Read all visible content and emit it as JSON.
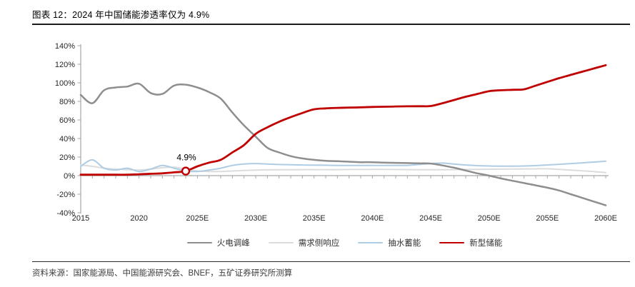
{
  "header": {
    "title": "图表 12：2024 年中国储能渗透率仅为 4.9%"
  },
  "source": {
    "text": "资料来源：国家能源局、中国能源研究会、BNEF，五矿证券研究所测算"
  },
  "chart_data": {
    "type": "line",
    "title": "2024 年中国储能渗透率仅为 4.9%",
    "figure_label": "图表 12",
    "xlabel": "",
    "ylabel": "",
    "xlim": [
      2015,
      2060
    ],
    "ylim": [
      -40,
      140
    ],
    "grid": false,
    "legend_position": "bottom",
    "axis_color": "#a6a6a6",
    "tick_label_color": "#262626",
    "y_tick_values": [
      140,
      120,
      100,
      80,
      60,
      40,
      20,
      0,
      -20,
      -40
    ],
    "y_tick_labels": [
      "140%",
      "120%",
      "100%",
      "80%",
      "60%",
      "40%",
      "20%",
      "0%",
      "-20%",
      "-40%"
    ],
    "x_ticks": [
      {
        "year": 2015,
        "label": "2015"
      },
      {
        "year": 2020,
        "label": "2020"
      },
      {
        "year": 2025,
        "label": "2025E"
      },
      {
        "year": 2030,
        "label": "2030E"
      },
      {
        "year": 2035,
        "label": "2035E"
      },
      {
        "year": 2040,
        "label": "2040E"
      },
      {
        "year": 2045,
        "label": "2045E"
      },
      {
        "year": 2050,
        "label": "2050E"
      },
      {
        "year": 2055,
        "label": "2055E"
      },
      {
        "year": 2060,
        "label": "2060E"
      }
    ],
    "years": [
      2015,
      2016,
      2017,
      2018,
      2019,
      2020,
      2021,
      2022,
      2023,
      2024,
      2025,
      2026,
      2027,
      2028,
      2029,
      2030,
      2031,
      2032,
      2033,
      2034,
      2035,
      2036,
      2037,
      2038,
      2039,
      2040,
      2041,
      2042,
      2043,
      2044,
      2045,
      2046,
      2047,
      2048,
      2049,
      2050,
      2051,
      2052,
      2053,
      2054,
      2055,
      2056,
      2057,
      2058,
      2059,
      2060
    ],
    "series": [
      {
        "name": "火电调峰",
        "color": "#8e8e8e",
        "values": [
          87,
          78,
          92,
          95,
          96,
          99,
          89,
          88,
          97,
          98,
          95,
          90,
          83,
          68,
          54,
          42,
          30,
          25,
          21,
          18.5,
          17,
          16,
          15.5,
          15,
          14.5,
          14.5,
          14,
          13.8,
          13.5,
          13.2,
          13,
          11,
          8.5,
          5.5,
          2.5,
          0,
          -3,
          -5.5,
          -8,
          -10.5,
          -13,
          -16,
          -20,
          -24,
          -28,
          -32
        ]
      },
      {
        "name": "需求侧响应",
        "color": "#dcdcdc",
        "values": [
          11.5,
          10,
          8,
          7,
          6.5,
          6,
          7,
          8.5,
          9,
          7,
          5,
          4.5,
          4.5,
          5,
          5.5,
          6,
          6.2,
          6.3,
          6.4,
          6.5,
          6.5,
          6.5,
          6.5,
          6.6,
          6.6,
          6.7,
          6.7,
          6.6,
          6.5,
          6.4,
          6.3,
          6.4,
          6.5,
          6.6,
          6.8,
          6.9,
          7,
          7.1,
          7.2,
          7.3,
          7.4,
          6.8,
          6,
          5.2,
          4.3,
          3.3
        ]
      },
      {
        "name": "抽水蓄能",
        "color": "#aecde5",
        "values": [
          10,
          17,
          8,
          6,
          8,
          4.5,
          7,
          11,
          8,
          5,
          4.5,
          6,
          8,
          11,
          12.5,
          13,
          12.5,
          12,
          11.8,
          11.5,
          11.3,
          11.2,
          11,
          11,
          11,
          11,
          11,
          11,
          11,
          12,
          13,
          13.5,
          12.5,
          11.5,
          10.8,
          10.4,
          10.2,
          10.2,
          10.4,
          10.8,
          11.5,
          12.2,
          13,
          13.8,
          14.6,
          15.5
        ]
      },
      {
        "name": "新型储能",
        "color": "#c00000",
        "values": [
          1,
          1,
          1,
          1,
          1,
          1.5,
          2,
          2.5,
          3.5,
          4.9,
          10,
          14,
          17,
          25,
          33,
          45,
          52,
          58,
          63,
          67.5,
          71.5,
          72.5,
          73,
          73.3,
          73.6,
          74,
          74.2,
          74.5,
          74.7,
          74.8,
          75,
          78,
          81.5,
          85,
          88,
          91,
          92,
          92.5,
          93,
          97,
          101,
          105,
          108.5,
          112,
          115.5,
          119
        ]
      }
    ],
    "annotation": {
      "label": "4.9%",
      "x": 2024,
      "y": 4.9,
      "marker": "open-circle",
      "marker_color": "#c00000",
      "label_color": "#000000"
    }
  }
}
